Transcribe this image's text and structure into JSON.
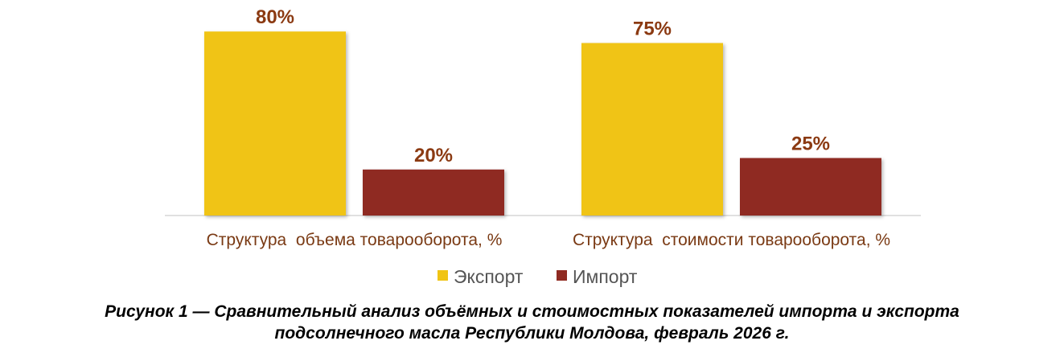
{
  "chart_data": {
    "type": "bar",
    "categories": [
      "Структура  объема товарооборота, %",
      "Структура  стоимости товарооборота, %"
    ],
    "series": [
      {
        "name": "Экспорт",
        "values": [
          80,
          75
        ],
        "color": "#F0C414",
        "labels": [
          "80%",
          "75%"
        ]
      },
      {
        "name": "Импорт",
        "values": [
          20,
          25
        ],
        "color": "#8F2A22",
        "labels": [
          "20%",
          "25%"
        ]
      }
    ],
    "ylim": [
      0,
      100
    ],
    "grid": false,
    "legend": "bottom",
    "label_color": "#8B3A12",
    "category_label_color": "#7A3A14"
  },
  "caption": {
    "line1": "Рисунок 1 — Сравнительный анализ объёмных и стоимостных показателей импорта и экспорта",
    "line2": "подсолнечного масла Республики Молдова, февраль 2026 г."
  }
}
